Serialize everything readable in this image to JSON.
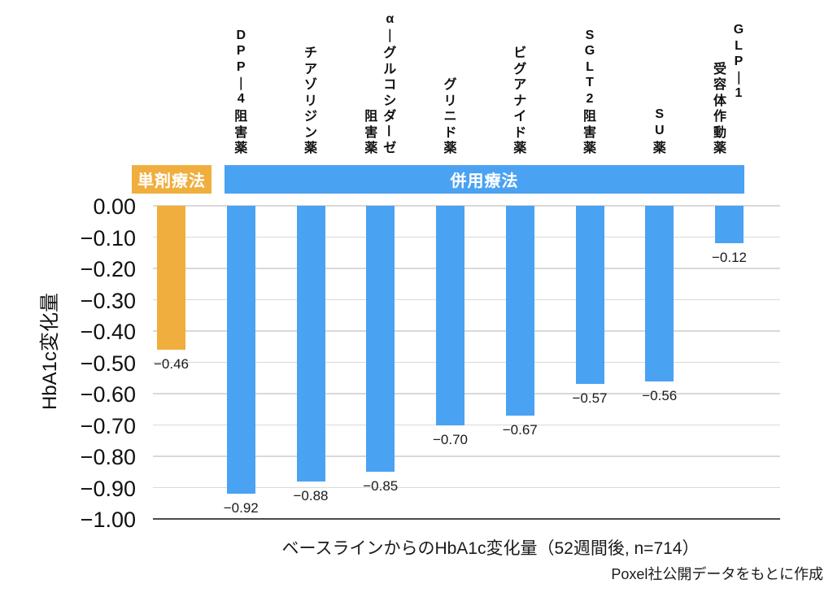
{
  "chart_data": {
    "type": "bar",
    "xlabel": "ベースラインからのHbA1c変化量（52週間後, n=714）",
    "ylabel": "HbA1c変化量",
    "credit": "Poxel社公開データをもとに作成",
    "ylim": [
      -1.0,
      0.0
    ],
    "grid": true,
    "ytick_labels": [
      "0.00",
      "−0.10",
      "−0.20",
      "−0.30",
      "−0.40",
      "−0.50",
      "−0.60",
      "−0.70",
      "−0.80",
      "−0.90",
      "−1.00"
    ],
    "groups": [
      {
        "id": "mono",
        "label": "単剤療法",
        "color": "#F0AE3E"
      },
      {
        "id": "combo",
        "label": "併用療法",
        "color": "#4AA2F2"
      }
    ],
    "bars": [
      {
        "category": "単剤療法",
        "lines": [],
        "value": -0.46,
        "label": "−0.46",
        "group": "mono"
      },
      {
        "category": "DPP-4阻害薬",
        "lines": [
          "DPP―4阻害薬"
        ],
        "value": -0.92,
        "label": "−0.92",
        "group": "combo"
      },
      {
        "category": "チアゾリジン薬",
        "lines": [
          "チアゾリジン薬"
        ],
        "value": -0.88,
        "label": "−0.88",
        "group": "combo"
      },
      {
        "category": "α-グルコシダーゼ阻害薬",
        "lines": [
          "α―グルコシダーゼ",
          "阻害薬"
        ],
        "value": -0.85,
        "label": "−0.85",
        "group": "combo"
      },
      {
        "category": "グリニド薬",
        "lines": [
          "グリニド薬"
        ],
        "value": -0.7,
        "label": "−0.70",
        "group": "combo"
      },
      {
        "category": "ビグアナイド薬",
        "lines": [
          "ビグアナイド薬"
        ],
        "value": -0.67,
        "label": "−0.67",
        "group": "combo"
      },
      {
        "category": "SGLT2阻害薬",
        "lines": [
          "SGLT2阻害薬"
        ],
        "value": -0.57,
        "label": "−0.57",
        "group": "combo"
      },
      {
        "category": "SU薬",
        "lines": [
          "SU薬"
        ],
        "value": -0.56,
        "label": "−0.56",
        "group": "combo"
      },
      {
        "category": "GLP-1受容体作動薬",
        "lines": [
          "GLP―1",
          "受容体作動薬"
        ],
        "line_offsets": [
          65,
          0
        ],
        "value": -0.12,
        "label": "−0.12",
        "group": "combo"
      }
    ]
  }
}
